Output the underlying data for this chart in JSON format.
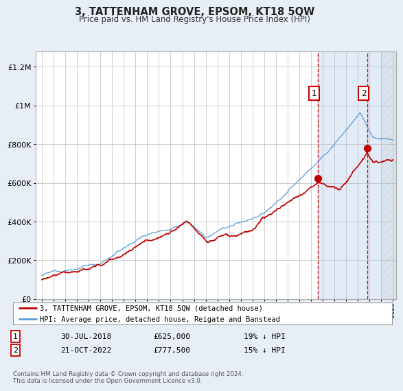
{
  "title": "3, TATTENHAM GROVE, EPSOM, KT18 5QW",
  "subtitle": "Price paid vs. HM Land Registry's House Price Index (HPI)",
  "ytick_values": [
    0,
    200000,
    400000,
    600000,
    800000,
    1000000,
    1200000
  ],
  "ylim": [
    0,
    1280000
  ],
  "xlim_start": 1994.5,
  "xlim_end": 2025.3,
  "hpi_color": "#5b9bd5",
  "price_color": "#c00000",
  "marker1_year": 2018.58,
  "marker1_price": 625000,
  "marker2_year": 2022.8,
  "marker2_price": 777500,
  "shade_color": "#dce9f5",
  "legend_label1": "3, TATTENHAM GROVE, EPSOM, KT18 5QW (detached house)",
  "legend_label2": "HPI: Average price, detached house, Reigate and Banstead",
  "note1_date": "30-JUL-2018",
  "note1_price": "£625,000",
  "note1_hpi": "19% ↓ HPI",
  "note2_date": "21-OCT-2022",
  "note2_price": "£777,500",
  "note2_hpi": "15% ↓ HPI",
  "footer": "Contains HM Land Registry data © Crown copyright and database right 2024.\nThis data is licensed under the Open Government Licence v3.0.",
  "bg_color": "#e8eef5",
  "plot_bg": "#ffffff"
}
